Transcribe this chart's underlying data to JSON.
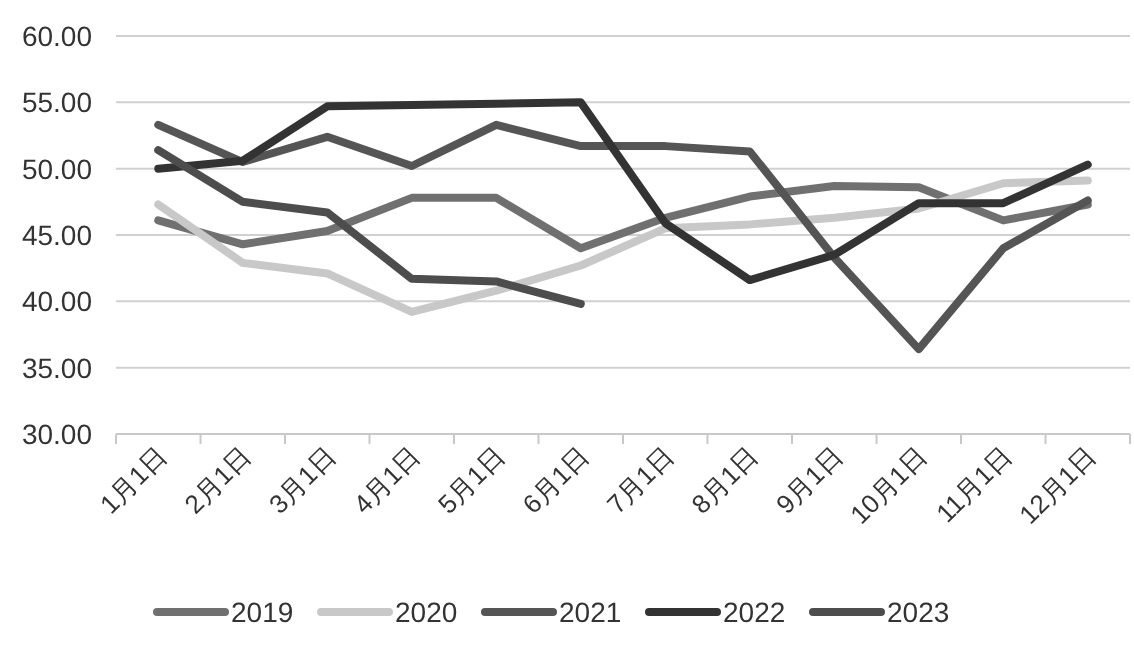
{
  "chart_data": {
    "type": "line",
    "categories": [
      "1月1日",
      "2月1日",
      "3月1日",
      "4月1日",
      "5月1日",
      "6月1日",
      "7月1日",
      "8月1日",
      "9月1日",
      "10月1日",
      "11月1日",
      "12月1日"
    ],
    "series": [
      {
        "name": "2019",
        "color": "#707070",
        "values": [
          46.1,
          44.3,
          45.3,
          47.8,
          47.8,
          44.0,
          46.3,
          47.9,
          48.7,
          48.6,
          46.1,
          47.3
        ]
      },
      {
        "name": "2020",
        "color": "#c8c8c8",
        "values": [
          47.3,
          42.9,
          42.1,
          39.2,
          40.8,
          42.7,
          45.5,
          45.8,
          46.3,
          47.0,
          48.9,
          49.1
        ]
      },
      {
        "name": "2021",
        "color": "#555555",
        "values": [
          53.3,
          50.5,
          52.4,
          50.2,
          53.3,
          51.7,
          51.7,
          51.3,
          43.3,
          36.4,
          44.0,
          47.6
        ]
      },
      {
        "name": "2022",
        "color": "#333333",
        "values": [
          50.0,
          50.6,
          54.7,
          54.8,
          54.9,
          55.0,
          45.9,
          41.6,
          43.5,
          47.4,
          47.4,
          50.3
        ]
      },
      {
        "name": "2023",
        "color": "#4d4d4d",
        "values": [
          51.4,
          47.5,
          46.7,
          41.7,
          41.5,
          39.8,
          null,
          null,
          null,
          null,
          null,
          null
        ]
      }
    ],
    "ylim": [
      30,
      60
    ],
    "yticks": [
      {
        "value": 30,
        "label": "30.00"
      },
      {
        "value": 35,
        "label": "35.00"
      },
      {
        "value": 40,
        "label": "40.00"
      },
      {
        "value": 45,
        "label": "45.00"
      },
      {
        "value": 50,
        "label": "50.00"
      },
      {
        "value": 55,
        "label": "55.00"
      },
      {
        "value": 60,
        "label": "60.00"
      }
    ],
    "grid": "y",
    "legend": "bottom",
    "marker": "none",
    "line_style": "solid"
  }
}
